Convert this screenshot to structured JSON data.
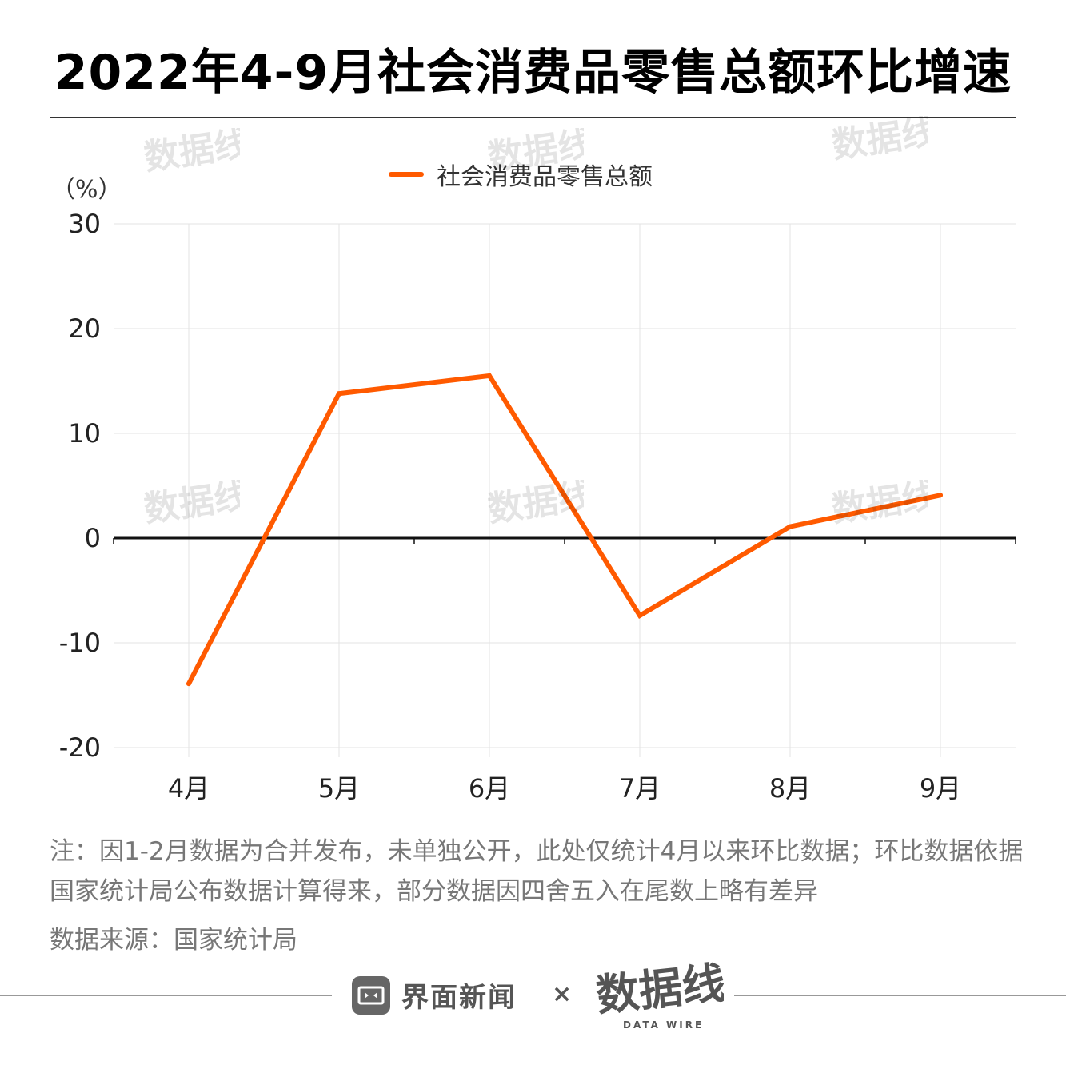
{
  "title": "2022年4-9月社会消费品零售总额环比增速",
  "legend": {
    "label": "社会消费品零售总额",
    "color": "#ff5a00"
  },
  "y_unit": "（%）",
  "note": "注：因1-2月数据为合并发布，未单独公开，此处仅统计4月以来环比数据；环比数据依据国家统计局公布数据计算得来，部分数据因四舍五入在尾数上略有差异",
  "source": "数据来源：国家统计局",
  "footer": {
    "brand": "界面新闻",
    "times": "×",
    "partner": "数据线",
    "partner_en": "DATA WIRE"
  },
  "chart_data": {
    "type": "line",
    "title": "2022年4-9月社会消费品零售总额环比增速",
    "xlabel": "",
    "ylabel": "（%）",
    "categories": [
      "4月",
      "5月",
      "6月",
      "7月",
      "8月",
      "9月"
    ],
    "series": [
      {
        "name": "社会消费品零售总额",
        "values": [
          -13.9,
          13.8,
          15.5,
          -7.4,
          1.1,
          4.1
        ],
        "color": "#ff5a00"
      }
    ],
    "ylim": [
      -20,
      30
    ],
    "yticks": [
      -20,
      -10,
      0,
      10,
      20,
      30
    ],
    "grid": true,
    "legend_position": "top-center"
  }
}
